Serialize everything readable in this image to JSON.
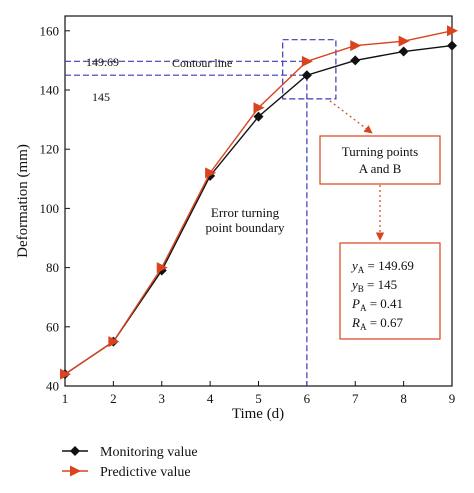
{
  "chart_data": {
    "type": "line",
    "xlabel": "Time (d)",
    "ylabel": "Deformation (mm)",
    "xlim": [
      1,
      9
    ],
    "ylim": [
      40,
      165
    ],
    "x_ticks": [
      "1",
      "2",
      "3",
      "4",
      "5",
      "6",
      "7",
      "8",
      "9"
    ],
    "y_ticks": [
      "40",
      "60",
      "80",
      "100",
      "120",
      "140",
      "160"
    ],
    "x": [
      1,
      2,
      3,
      4,
      5,
      6,
      7,
      8,
      9
    ],
    "series": [
      {
        "name": "Monitoring value",
        "marker": "diamond",
        "color": "#111111",
        "values": [
          44,
          55,
          79,
          111,
          131,
          145,
          150,
          153,
          155
        ]
      },
      {
        "name": "Predictive value",
        "marker": "triangle-right",
        "color": "#d9441f",
        "values": [
          44,
          55,
          80,
          112,
          134,
          149.69,
          155,
          156.5,
          160
        ]
      }
    ],
    "grid": false,
    "legend_position": "bottom-left",
    "annotations": {
      "hline_upper_value_label": "149.69",
      "hline_lower_value_label": "145",
      "contour_label": "Contour line",
      "error_boundary_label_line1": "Error turning",
      "error_boundary_label_line2": "point boundary",
      "turning_box_line1": "Turning points",
      "turning_box_line2": "A and B",
      "stats": [
        {
          "sym": "y",
          "sub": "A",
          "rest": " = 149.69"
        },
        {
          "sym": "y",
          "sub": "B",
          "rest": " = 145"
        },
        {
          "sym": "P",
          "sub": "A",
          "rest": " = 0.41"
        },
        {
          "sym": "R",
          "sub": "A",
          "rest": " = 0.67"
        }
      ],
      "dashed_color": "#3b3bb0",
      "box_color": "#d9441f"
    }
  }
}
